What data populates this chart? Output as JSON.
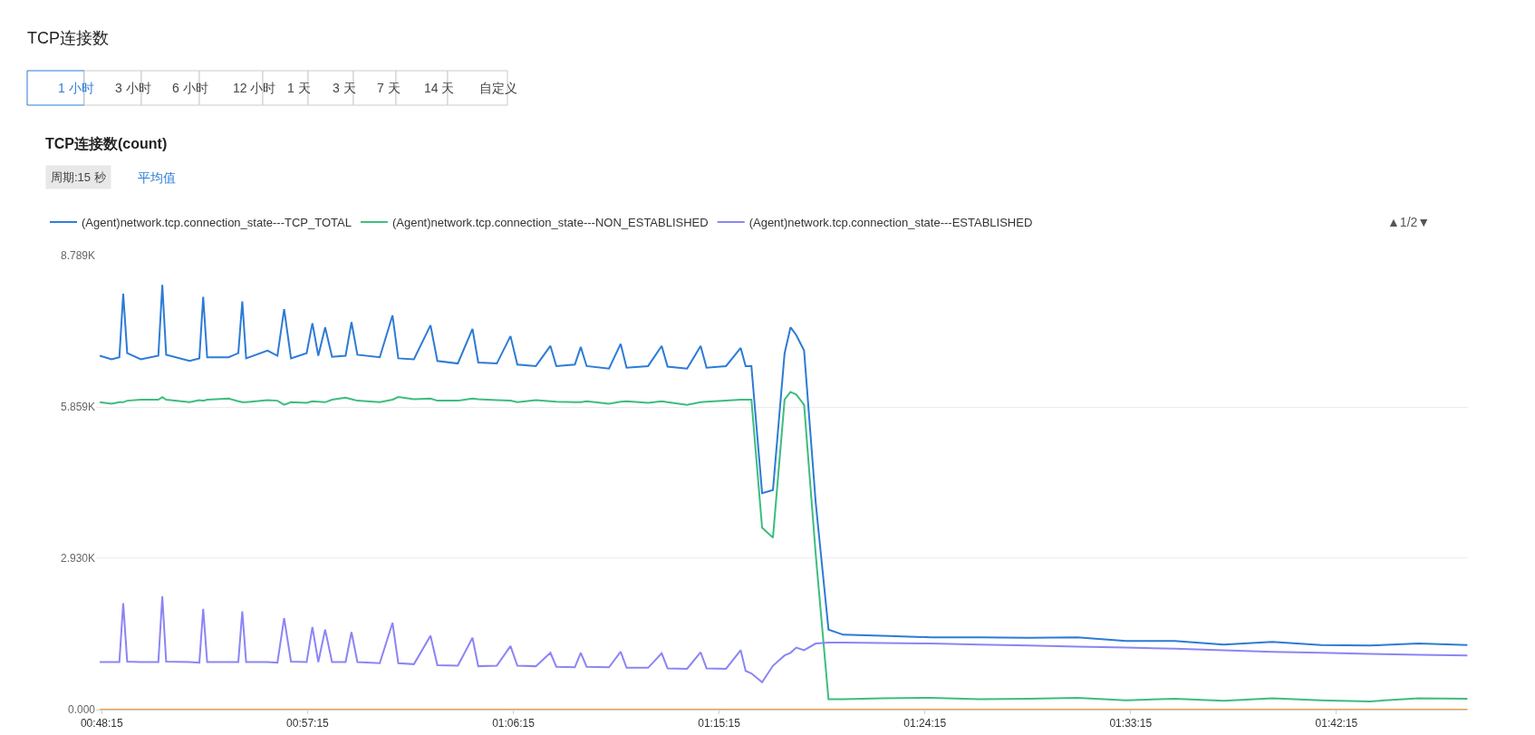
{
  "chart_data": {
    "type": "line",
    "title": "TCP连接数(count)",
    "annotations": [
      "TCP连接数",
      "1 小时",
      "3 小时",
      "6 小时",
      "12 小时",
      "1 天",
      "3 天",
      "7 天",
      "14 天",
      "自定义",
      "周期:15 秒",
      "平均值",
      "▲1/2▼"
    ],
    "x": [
      0.8027,
      0.8113,
      0.817,
      0.8198,
      0.8227,
      0.8326,
      0.8454,
      0.8483,
      0.8511,
      0.8682,
      0.8753,
      0.8781,
      0.881,
      0.8966,
      0.9037,
      0.9066,
      0.9094,
      0.925,
      0.9322,
      0.9371,
      0.9421,
      0.9535,
      0.9577,
      0.962,
      0.967,
      0.972,
      0.9819,
      0.9862,
      0.9905,
      1.0068,
      1.0161,
      1.0203,
      1.0317,
      1.0438,
      1.0488,
      1.0637,
      1.0744,
      1.0786,
      1.0921,
      1.1021,
      1.1071,
      1.1206,
      1.1312,
      1.1355,
      1.149,
      1.1533,
      1.1576,
      1.1739,
      1.1824,
      1.1867,
      1.2024,
      1.2123,
      1.2166,
      1.2308,
      1.2407,
      1.245,
      1.2592,
      1.2699,
      1.2735,
      1.2777,
      1.2855,
      1.2934,
      1.3019,
      1.3062,
      1.3104,
      1.3161,
      1.3246,
      1.3339,
      1.3446,
      1.373,
      1.4086,
      1.4441,
      1.4797,
      1.5152,
      1.5508,
      1.5863,
      1.6219,
      1.6574,
      1.693,
      1.7285,
      1.7641,
      1.7996
    ],
    "series": [
      {
        "name": "(Agent)network.tcp.connection_state---TCP_TOTAL",
        "color": "#2d7bd6",
        "values": [
          6850,
          6780,
          6820,
          8050,
          6900,
          6780,
          6850,
          8220,
          6870,
          6750,
          6800,
          7990,
          6820,
          6820,
          6900,
          7900,
          6800,
          6950,
          6850,
          7750,
          6800,
          6900,
          7480,
          6850,
          7400,
          6830,
          6850,
          7500,
          6870,
          6820,
          7630,
          6800,
          6780,
          7440,
          6750,
          6700,
          7370,
          6720,
          6700,
          7230,
          6680,
          6650,
          7040,
          6650,
          6680,
          7020,
          6650,
          6600,
          7080,
          6620,
          6650,
          7040,
          6640,
          6600,
          7040,
          6620,
          6650,
          7000,
          6650,
          6650,
          4190,
          4250,
          6900,
          7400,
          7250,
          6950,
          4000,
          1550,
          1450,
          1430,
          1400,
          1400,
          1390,
          1400,
          1330,
          1330,
          1260,
          1310,
          1250,
          1240,
          1280,
          1250
        ]
      },
      {
        "name": "(Agent)network.tcp.connection_state---NON_ESTABLISHED",
        "color": "#3dbd7d",
        "values": [
          5950,
          5920,
          5950,
          5950,
          5980,
          6000,
          6000,
          6050,
          6000,
          5950,
          5990,
          5980,
          6000,
          6020,
          5970,
          5950,
          5950,
          5990,
          5980,
          5900,
          5950,
          5940,
          5970,
          5960,
          5950,
          6000,
          6040,
          6010,
          5980,
          5950,
          6000,
          6050,
          6010,
          6020,
          5980,
          5980,
          6020,
          6010,
          5990,
          5980,
          5950,
          5990,
          5970,
          5960,
          5950,
          5950,
          5970,
          5920,
          5960,
          5970,
          5940,
          5970,
          5950,
          5900,
          5950,
          5960,
          5980,
          6000,
          6000,
          6000,
          3520,
          3330,
          6000,
          6150,
          6100,
          5900,
          3000,
          200,
          200,
          220,
          230,
          200,
          210,
          230,
          180,
          210,
          170,
          220,
          180,
          160,
          220,
          210
        ]
      },
      {
        "name": "(Agent)network.tcp.connection_state---ESTABLISHED",
        "color": "#8b85f5",
        "values": [
          920,
          920,
          920,
          2060,
          930,
          920,
          920,
          2190,
          930,
          920,
          910,
          1950,
          920,
          920,
          920,
          1900,
          920,
          920,
          910,
          1770,
          930,
          920,
          1600,
          920,
          1550,
          920,
          920,
          1500,
          920,
          900,
          1680,
          900,
          880,
          1430,
          860,
          850,
          1390,
          840,
          850,
          1230,
          850,
          840,
          1100,
          830,
          820,
          1100,
          830,
          820,
          1120,
          810,
          810,
          1090,
          800,
          790,
          1110,
          800,
          790,
          1150,
          750,
          700,
          530,
          850,
          1050,
          1100,
          1200,
          1150,
          1280,
          1300,
          1300,
          1290,
          1280,
          1260,
          1240,
          1220,
          1200,
          1180,
          1150,
          1120,
          1100,
          1080,
          1060,
          1050
        ]
      },
      {
        "color": "#f59a3c",
        "values": [
          0,
          0,
          0,
          0,
          0,
          0,
          0,
          0,
          0,
          0,
          0,
          0,
          0,
          0,
          0,
          0,
          0,
          0,
          0,
          0,
          0,
          0,
          0,
          0,
          0,
          0,
          0,
          0,
          0,
          0,
          0,
          0,
          0,
          0,
          0,
          0,
          0,
          0,
          0,
          0,
          0,
          0,
          0,
          0,
          0,
          0,
          0,
          0,
          0,
          0,
          0,
          0,
          0,
          0,
          0,
          0,
          0,
          0,
          0,
          0,
          0,
          0,
          0,
          0,
          0,
          0,
          0,
          0,
          0,
          0,
          0,
          0,
          0,
          0,
          0,
          0,
          0,
          0,
          0,
          0,
          0,
          0
        ]
      }
    ],
    "xlim": [
      0.8,
      1.8
    ],
    "xticks": [
      {
        "value": 0.80417,
        "label": "00:48:15"
      },
      {
        "value": 0.95417,
        "label": "00:57:15"
      },
      {
        "value": 1.10417,
        "label": "01:06:15"
      },
      {
        "value": 1.25417,
        "label": "01:15:15"
      },
      {
        "value": 1.40417,
        "label": "01:24:15"
      },
      {
        "value": 1.55417,
        "label": "01:33:15"
      },
      {
        "value": 1.70417,
        "label": "01:42:15"
      }
    ],
    "ylim": [
      0,
      8789
    ],
    "yticks": [
      {
        "value": 0,
        "label": "0.000"
      },
      {
        "value": 2930,
        "label": "2.930K"
      },
      {
        "value": 5859,
        "label": "5.859K"
      },
      {
        "value": 8789,
        "label": "8.789K"
      }
    ],
    "grid": "y",
    "legend": "top left",
    "marker": "none",
    "line_style": "solid"
  }
}
